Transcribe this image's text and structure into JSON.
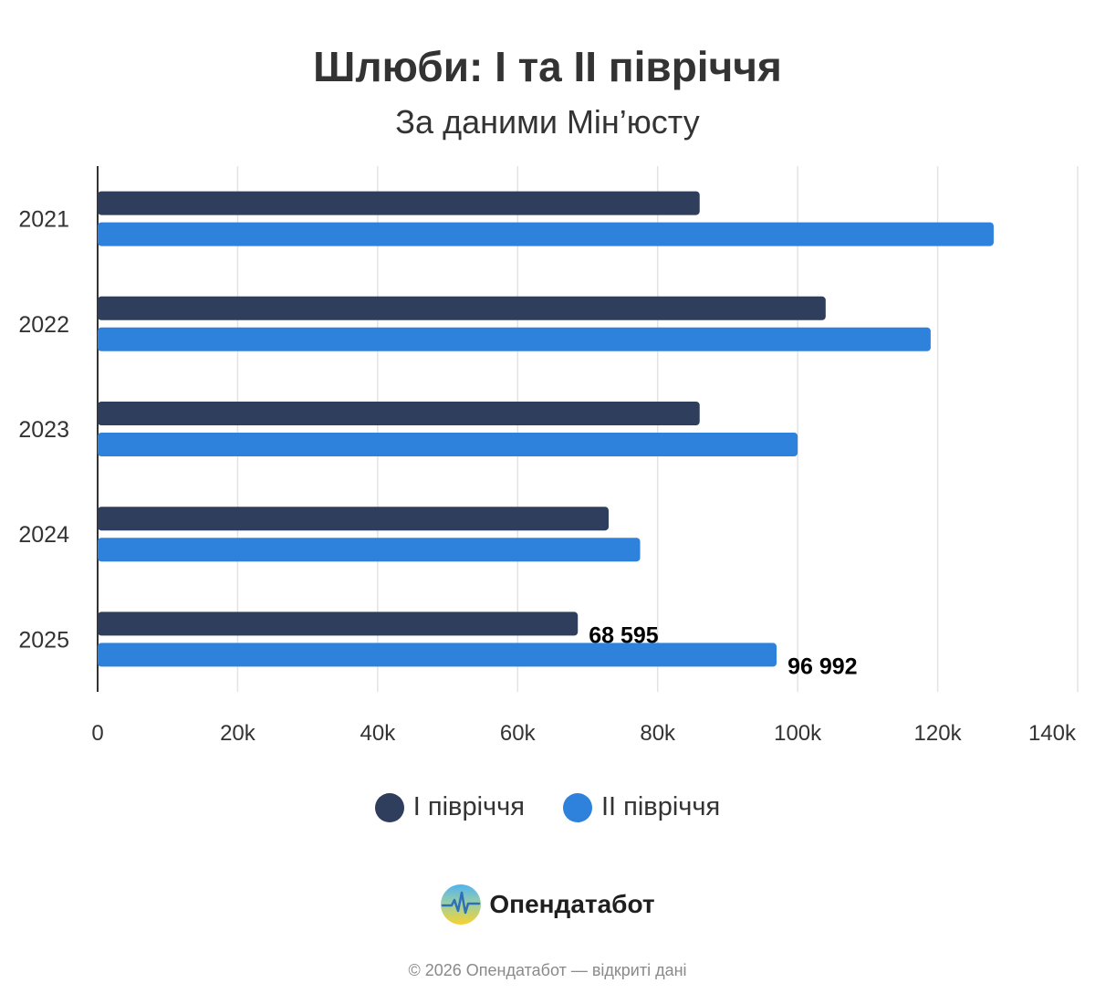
{
  "chart_data": {
    "type": "bar",
    "orientation": "horizontal",
    "title": "Шлюби: І та ІІ півріччя",
    "subtitle": "За даними Мін’юсту",
    "categories": [
      "2021",
      "2022",
      "2023",
      "2024",
      "2025"
    ],
    "series": [
      {
        "name": "І півріччя",
        "color": "#2f3e5c",
        "values": [
          86000,
          104000,
          86000,
          73000,
          68595
        ],
        "data_labels": [
          "",
          "",
          "",
          "",
          "68 595"
        ]
      },
      {
        "name": "ІІ півріччя",
        "color": "#2e82dc",
        "values": [
          128000,
          119000,
          100000,
          77500,
          96992
        ],
        "data_labels": [
          "",
          "",
          "",
          "",
          "96 992"
        ]
      }
    ],
    "xlim": [
      0,
      140000
    ],
    "x_ticks": [
      0,
      20000,
      40000,
      60000,
      80000,
      100000,
      120000,
      140000
    ],
    "x_tick_labels": [
      "0",
      "20k",
      "40k",
      "60k",
      "80k",
      "100k",
      "120k",
      "140k"
    ],
    "grid": true,
    "legend_position": "bottom"
  },
  "brand": {
    "name": "Опендатабот",
    "logo_icon": "opendatabot-logo-icon"
  },
  "footer": "© 2026 Опендатабот — відкриті дані"
}
